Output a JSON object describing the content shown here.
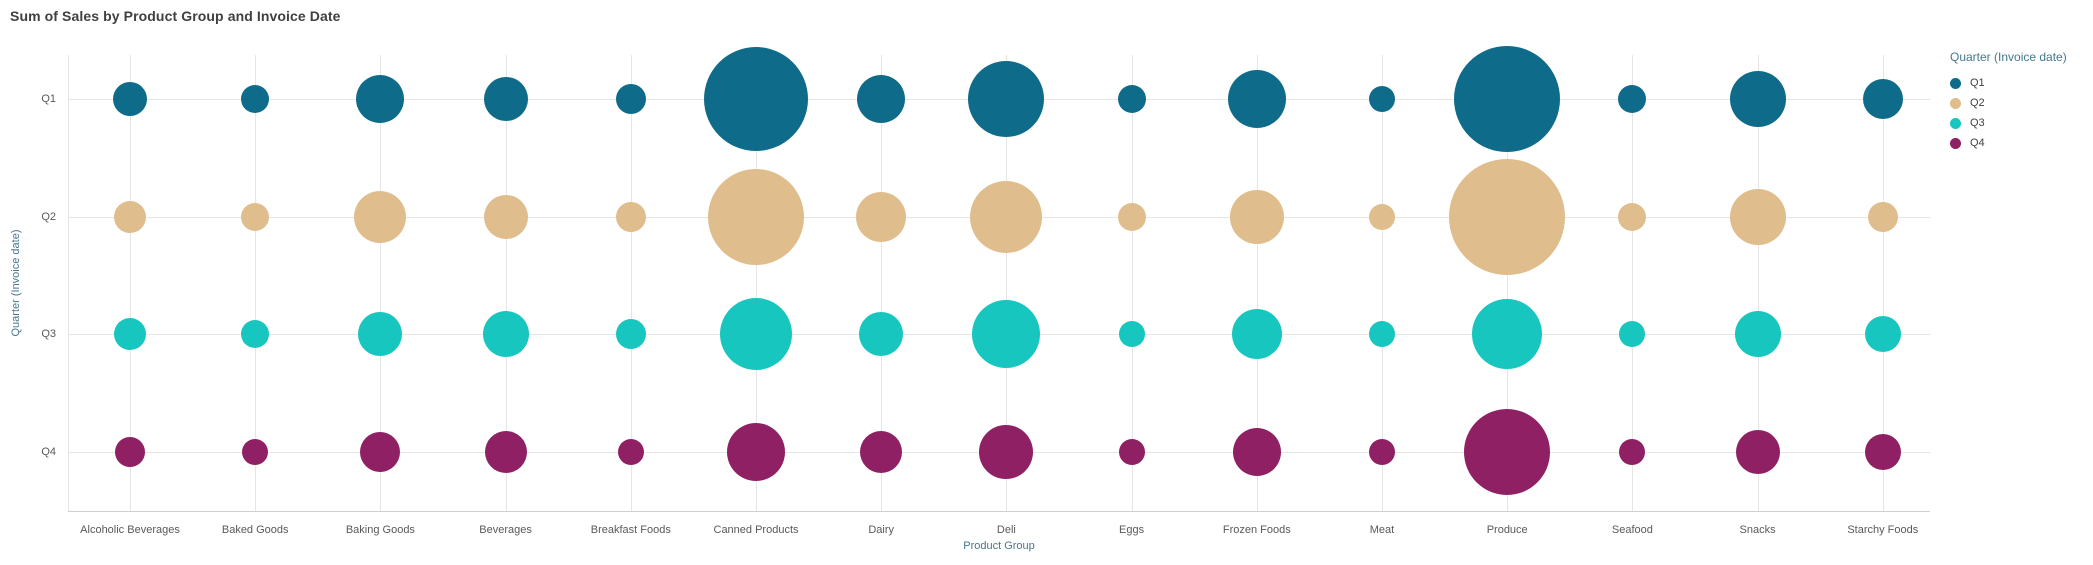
{
  "title": "Sum of Sales by Product Group and Invoice Date",
  "x_axis": {
    "label": "Product Group"
  },
  "y_axis": {
    "label": "Quarter (Invoice date)"
  },
  "legend": {
    "title": "Quarter (Invoice date)",
    "position": "right",
    "items": [
      {
        "label": "Q1",
        "color": "#0F6B8A"
      },
      {
        "label": "Q2",
        "color": "#E0BD8D"
      },
      {
        "label": "Q3",
        "color": "#17C6BE"
      },
      {
        "label": "Q4",
        "color": "#8E2063"
      }
    ]
  },
  "chart_data": {
    "type": "scatter",
    "subtype": "bubble",
    "title": "Sum of Sales by Product Group and Invoice Date",
    "xlabel": "Product Group",
    "ylabel": "Quarter (Invoice date)",
    "grid": true,
    "legend_position": "right",
    "size_encoding": "Bubble size encodes Sum of Sales (no numeric labels shown; sizes captured as on-screen bubble radii in px)",
    "categories": [
      "Alcoholic Beverages",
      "Baked Goods",
      "Baking Goods",
      "Beverages",
      "Breakfast Foods",
      "Canned Products",
      "Dairy",
      "Deli",
      "Eggs",
      "Frozen Foods",
      "Meat",
      "Produce",
      "Seafood",
      "Snacks",
      "Starchy Foods"
    ],
    "rows": [
      "Q1",
      "Q2",
      "Q3",
      "Q4"
    ],
    "series": [
      {
        "name": "Q1",
        "color": "#0F6B8A",
        "radius_px": [
          17,
          14,
          24,
          22,
          15,
          52,
          24,
          38,
          14,
          29,
          13,
          53,
          14,
          28,
          20
        ]
      },
      {
        "name": "Q2",
        "color": "#E0BD8D",
        "radius_px": [
          16,
          14,
          26,
          22,
          15,
          48,
          25,
          36,
          14,
          27,
          13,
          58,
          14,
          28,
          15
        ]
      },
      {
        "name": "Q3",
        "color": "#17C6BE",
        "radius_px": [
          16,
          14,
          22,
          23,
          15,
          36,
          22,
          34,
          13,
          25,
          13,
          35,
          13,
          23,
          18
        ]
      },
      {
        "name": "Q4",
        "color": "#8E2063",
        "radius_px": [
          15,
          13,
          20,
          21,
          13,
          29,
          21,
          27,
          13,
          24,
          13,
          43,
          13,
          22,
          18
        ]
      }
    ]
  }
}
